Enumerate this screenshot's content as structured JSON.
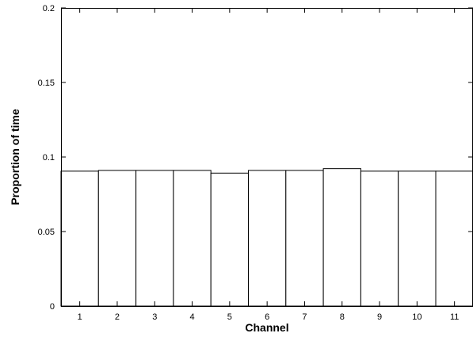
{
  "chart_data": {
    "type": "bar",
    "title": "",
    "xlabel": "Channel",
    "ylabel": "Proportion of time",
    "categories": [
      "1",
      "2",
      "3",
      "4",
      "5",
      "6",
      "7",
      "8",
      "9",
      "10",
      "11"
    ],
    "values": [
      0.0905,
      0.091,
      0.091,
      0.091,
      0.0892,
      0.091,
      0.091,
      0.0922,
      0.0905,
      0.0905,
      0.0905
    ],
    "ylim": [
      0,
      0.2
    ],
    "yticks": [
      "0",
      "0.05",
      "0.1",
      "0.15",
      "0.2"
    ],
    "grid": false,
    "legend": "none",
    "colors": {
      "bar_fill": "#ffffff",
      "bar_stroke": "#000000",
      "axis": "#000000"
    }
  }
}
